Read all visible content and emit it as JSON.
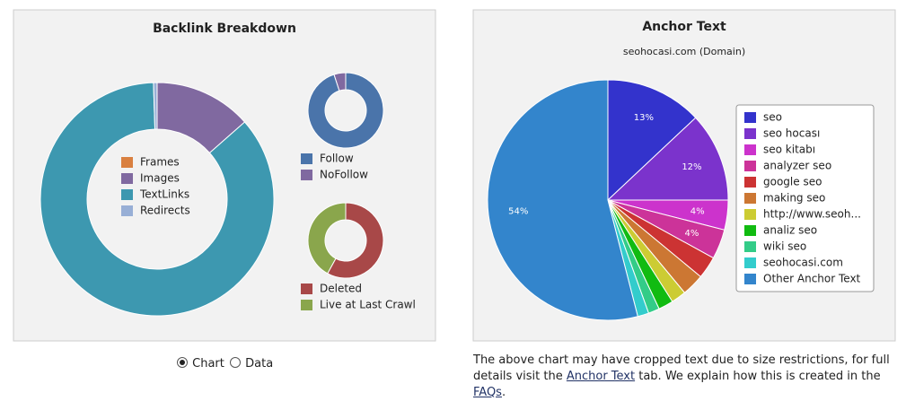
{
  "chart_data": [
    {
      "type": "donut",
      "title": "Backlink Breakdown",
      "categories": [
        "Frames",
        "Images",
        "TextLinks",
        "Redirects"
      ],
      "values": [
        0,
        13.5,
        86,
        0.5
      ],
      "colors": [
        "#d98040",
        "#8069a0",
        "#3d98b0",
        "#98afd6"
      ]
    },
    {
      "type": "donut",
      "categories": [
        "Follow",
        "NoFollow"
      ],
      "values": [
        95,
        5
      ],
      "colors": [
        "#4a74aa",
        "#8069a0"
      ]
    },
    {
      "type": "donut",
      "categories": [
        "Deleted",
        "Live at Last Crawl"
      ],
      "values": [
        58,
        42
      ],
      "colors": [
        "#a84848",
        "#8aa64c"
      ]
    },
    {
      "type": "pie",
      "title": "Anchor Text",
      "subtitle": "seohocasi.com (Domain)",
      "categories": [
        "seo",
        "seo hocası",
        "seo kitabı",
        "analyzer seo",
        "google seo",
        "making seo",
        "http://www.seoh...",
        "analiz seo",
        "wiki seo",
        "seohocasi.com",
        "Other Anchor Text"
      ],
      "values": [
        13,
        12,
        4,
        4,
        3,
        3,
        2,
        2,
        1.5,
        1.5,
        54
      ],
      "value_labels": [
        "13%",
        "12%",
        "4%",
        "4%",
        null,
        null,
        null,
        null,
        null,
        null,
        "54%"
      ],
      "colors": [
        "#3333cc",
        "#7b33cc",
        "#cc33cc",
        "#cc3399",
        "#cc3333",
        "#cc7733",
        "#cccc33",
        "#11bb11",
        "#33cc88",
        "#33cccc",
        "#3385cc"
      ]
    }
  ],
  "view_toggle": {
    "options": [
      "Chart",
      "Data"
    ],
    "selected": "Chart"
  },
  "note": {
    "parts": [
      "The above chart may have cropped text due to size restrictions, for full details visit the",
      "Anchor Text",
      "tab. We explain how this is created in the",
      "FAQs",
      "."
    ]
  }
}
